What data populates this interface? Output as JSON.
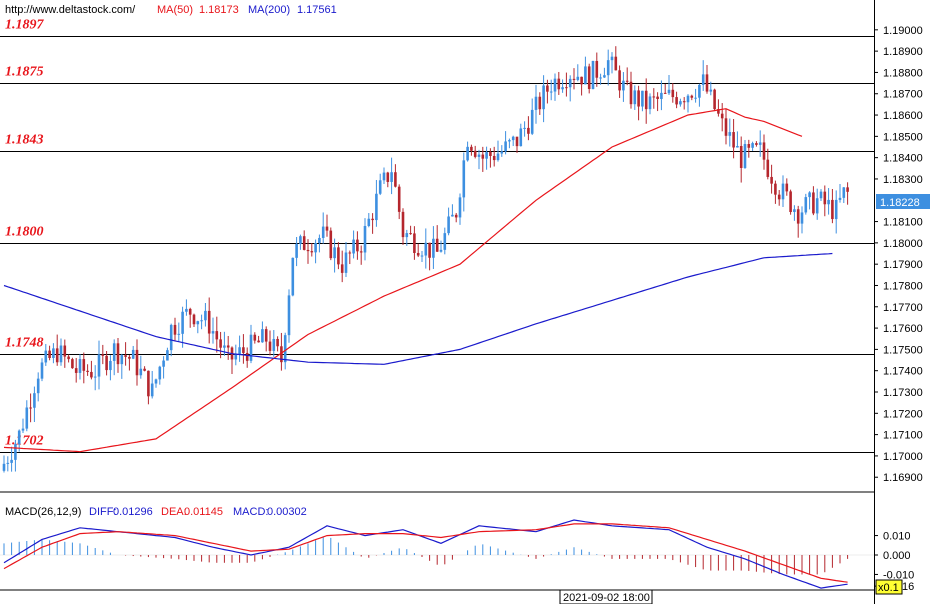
{
  "header": {
    "url": "http://www.deltastock.com/",
    "ma50_label": "MA(50)",
    "ma50_value": "1.18173",
    "ma200_label": "MA(200)",
    "ma200_value": "1.17561"
  },
  "macd_header": {
    "title": "MACD(26,12,9)",
    "diff_label": "DIFF:",
    "diff_value": "0.01296",
    "dea_label": "DEA:",
    "dea_value": "0.01145",
    "macd_label": "MACD:",
    "macd_value": "0.00302"
  },
  "price_badge": "1.18228",
  "time_label": "2021-09-02 18:00",
  "zoom_label": "x0.1",
  "colors": {
    "up": "#3d8fe0",
    "down": "#b5262d",
    "ma50": "#e8151b",
    "ma200": "#1a1acc",
    "level": "#e8151b",
    "diff": "#1a1acc",
    "dea": "#e8151b",
    "badge": "#3d8fe0",
    "zoom_badge": "#ffff33"
  },
  "chart_data": {
    "type": "candlestick",
    "y_ticks": [
      "1.19000",
      "1.18900",
      "1.18800",
      "1.18700",
      "1.18600",
      "1.18500",
      "1.18400",
      "1.18300",
      "1.18100",
      "1.18000",
      "1.17900",
      "1.17800",
      "1.17700",
      "1.17600",
      "1.17500",
      "1.17400",
      "1.17300",
      "1.17200",
      "1.17100",
      "1.17000",
      "1.16900"
    ],
    "ylim": [
      1.1684,
      1.1914
    ],
    "levels": [
      {
        "label": "1.1897",
        "value": 1.1897
      },
      {
        "label": "1.1875",
        "value": 1.1875
      },
      {
        "label": "1.1843",
        "value": 1.1843
      },
      {
        "label": "1.1800",
        "value": 1.18
      },
      {
        "label": "1.1748",
        "value": 1.1748
      },
      {
        "label": "1.1702",
        "value": 1.1702
      }
    ],
    "anchors": [
      [
        0,
        1.1693
      ],
      [
        5,
        1.171
      ],
      [
        10,
        1.174
      ],
      [
        15,
        1.1749
      ],
      [
        20,
        1.174
      ],
      [
        25,
        1.174
      ],
      [
        30,
        1.175
      ],
      [
        35,
        1.1745
      ],
      [
        40,
        1.173
      ],
      [
        45,
        1.176
      ],
      [
        50,
        1.1768
      ],
      [
        55,
        1.1762
      ],
      [
        60,
        1.1745
      ],
      [
        65,
        1.175
      ],
      [
        70,
        1.1755
      ],
      [
        74,
        1.1745
      ],
      [
        77,
        1.1795
      ],
      [
        80,
        1.18
      ],
      [
        85,
        1.1803
      ],
      [
        90,
        1.179
      ],
      [
        95,
        1.18
      ],
      [
        100,
        1.1825
      ],
      [
        103,
        1.1835
      ],
      [
        106,
        1.1805
      ],
      [
        110,
        1.18
      ],
      [
        115,
        1.1795
      ],
      [
        120,
        1.1815
      ],
      [
        123,
        1.185
      ],
      [
        127,
        1.184
      ],
      [
        132,
        1.1843
      ],
      [
        136,
        1.1848
      ],
      [
        140,
        1.186
      ],
      [
        145,
        1.1875
      ],
      [
        150,
        1.188
      ],
      [
        155,
        1.1878
      ],
      [
        160,
        1.1885
      ],
      [
        165,
        1.187
      ],
      [
        170,
        1.1865
      ],
      [
        175,
        1.1868
      ],
      [
        180,
        1.187
      ],
      [
        185,
        1.1875
      ],
      [
        190,
        1.1855
      ],
      [
        195,
        1.184
      ],
      [
        200,
        1.1843
      ],
      [
        205,
        1.1825
      ],
      [
        210,
        1.1815
      ],
      [
        215,
        1.182
      ],
      [
        220,
        1.1815
      ],
      [
        222,
        1.1823
      ]
    ],
    "ma50": [
      [
        0,
        1.1704
      ],
      [
        20,
        1.1702
      ],
      [
        40,
        1.1708
      ],
      [
        60,
        1.1732
      ],
      [
        80,
        1.1757
      ],
      [
        100,
        1.1775
      ],
      [
        120,
        1.179
      ],
      [
        140,
        1.182
      ],
      [
        160,
        1.1845
      ],
      [
        180,
        1.186
      ],
      [
        190,
        1.1863
      ],
      [
        195,
        1.1859
      ],
      [
        200,
        1.1857
      ],
      [
        210,
        1.185
      ]
    ],
    "ma200": [
      [
        0,
        1.178
      ],
      [
        20,
        1.1768
      ],
      [
        40,
        1.1756
      ],
      [
        60,
        1.1748
      ],
      [
        80,
        1.1744
      ],
      [
        100,
        1.1743
      ],
      [
        120,
        1.175
      ],
      [
        140,
        1.1762
      ],
      [
        160,
        1.1773
      ],
      [
        180,
        1.1784
      ],
      [
        200,
        1.1793
      ],
      [
        218,
        1.1795
      ]
    ],
    "macd": {
      "ylim": [
        -0.018,
        0.018
      ],
      "ticks": [
        "0.010",
        "0.000",
        "-0.010",
        "-0.016"
      ],
      "diff": [
        [
          0,
          -0.004
        ],
        [
          10,
          0.008
        ],
        [
          20,
          0.014
        ],
        [
          30,
          0.012
        ],
        [
          45,
          0.009
        ],
        [
          55,
          0.004
        ],
        [
          65,
          0.0
        ],
        [
          75,
          0.004
        ],
        [
          85,
          0.015
        ],
        [
          95,
          0.01
        ],
        [
          105,
          0.013
        ],
        [
          115,
          0.006
        ],
        [
          125,
          0.015
        ],
        [
          140,
          0.012
        ],
        [
          150,
          0.018
        ],
        [
          160,
          0.015
        ],
        [
          175,
          0.013
        ],
        [
          185,
          0.004
        ],
        [
          195,
          -0.002
        ],
        [
          205,
          -0.01
        ],
        [
          215,
          -0.017
        ],
        [
          222,
          -0.015
        ]
      ],
      "dea": [
        [
          0,
          -0.007
        ],
        [
          10,
          0.004
        ],
        [
          20,
          0.011
        ],
        [
          30,
          0.012
        ],
        [
          45,
          0.01
        ],
        [
          55,
          0.006
        ],
        [
          65,
          0.002
        ],
        [
          75,
          0.003
        ],
        [
          85,
          0.01
        ],
        [
          95,
          0.011
        ],
        [
          105,
          0.011
        ],
        [
          115,
          0.009
        ],
        [
          125,
          0.012
        ],
        [
          140,
          0.013
        ],
        [
          150,
          0.016
        ],
        [
          160,
          0.016
        ],
        [
          175,
          0.014
        ],
        [
          185,
          0.008
        ],
        [
          195,
          0.002
        ],
        [
          205,
          -0.005
        ],
        [
          215,
          -0.012
        ],
        [
          222,
          -0.014
        ]
      ]
    }
  }
}
